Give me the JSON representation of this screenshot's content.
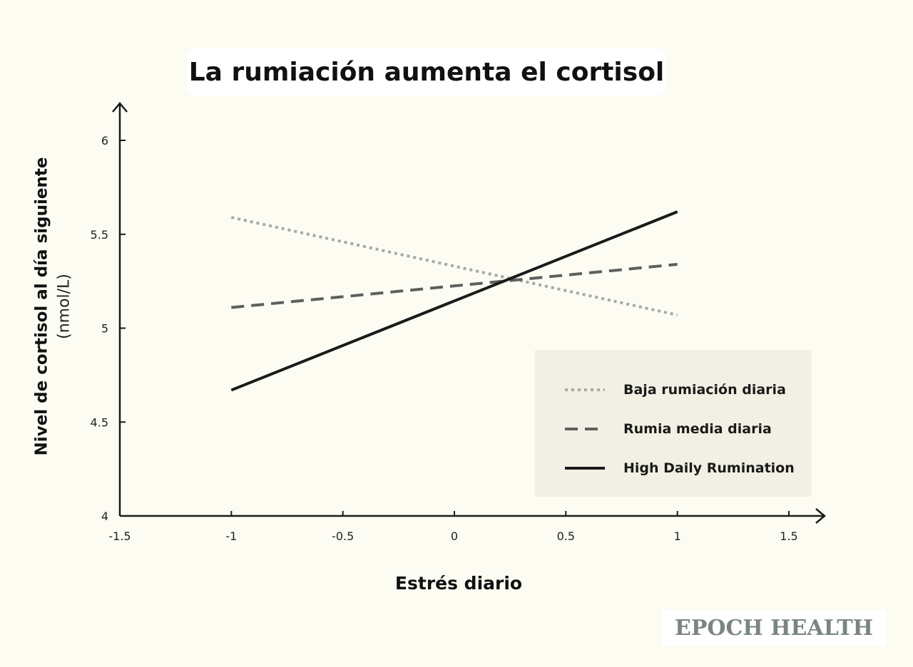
{
  "brand": "EPOCH HEALTH",
  "chart_data": {
    "type": "line",
    "title": "La rumiación aumenta el cortisol",
    "xlabel": "Estrés diario",
    "ylabel": "Nivel de cortisol al día siguiente",
    "ylabel_unit": "(nmol/L)",
    "xlim": [
      -1.5,
      1.5
    ],
    "ylim": [
      4,
      6
    ],
    "x_ticks": [
      -1.5,
      -1,
      -0.5,
      0,
      0.5,
      1,
      1.5
    ],
    "x_tick_labels": [
      "-1.5",
      "-1",
      "-0.5",
      "0",
      "0.5",
      "1",
      "1.5"
    ],
    "y_ticks": [
      4,
      4.5,
      5,
      5.5,
      6
    ],
    "y_tick_labels": [
      "4",
      "4.5",
      "5",
      "5.5",
      "6"
    ],
    "grid": false,
    "legend_position": "bottom-right",
    "series": [
      {
        "name": "Baja rumiación diaria",
        "style": "dotted",
        "color": "#a9a9a3",
        "x": [
          -1,
          1
        ],
        "values": [
          5.59,
          5.07
        ]
      },
      {
        "name": "Rumia media diaria",
        "style": "dashed",
        "color": "#5f5f5f",
        "x": [
          -1,
          1
        ],
        "values": [
          5.11,
          5.34
        ]
      },
      {
        "name": "High Daily Rumination",
        "style": "solid",
        "color": "#1a1a1a",
        "x": [
          -1,
          1
        ],
        "values": [
          4.67,
          5.62
        ]
      }
    ]
  }
}
